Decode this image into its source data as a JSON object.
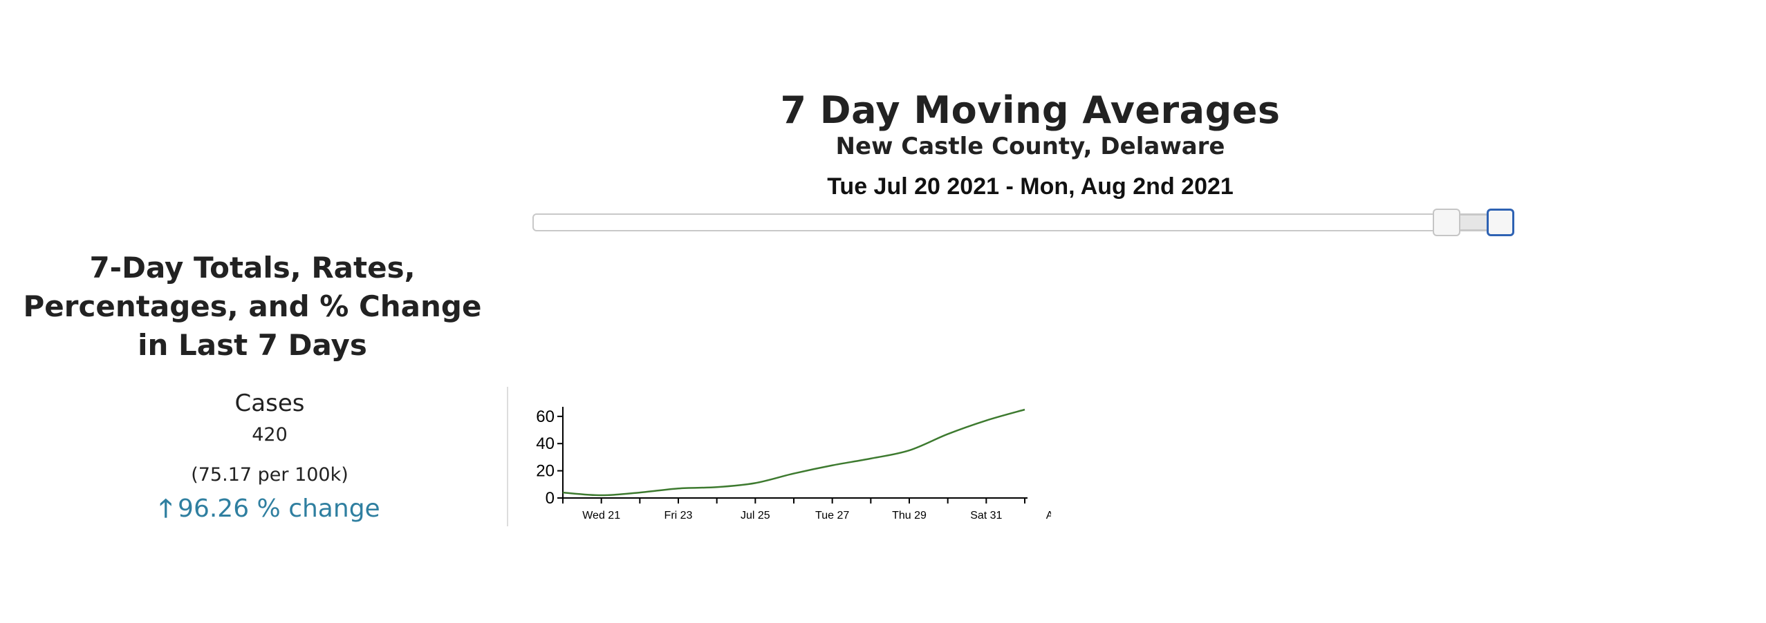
{
  "header": {
    "title": "7 Day Moving Averages",
    "subtitle": "New Castle County, Delaware",
    "date_range": "Tue Jul 20 2021 - Mon, Aug 2nd 2021"
  },
  "section": {
    "title": "7-Day Totals, Rates, Percentages, and % Change in Last 7 Days"
  },
  "stats": {
    "label": "Cases",
    "total": "420",
    "rate": "(75.17 per 100k)",
    "change": "96.26 % change",
    "change_direction_icon": "arrow-up-icon",
    "change_color": "#2f7fa0"
  },
  "colors": {
    "line": "#3d7a2f",
    "slider_active_border": "#2e62b3"
  },
  "chart_data": {
    "type": "line",
    "x": [
      "2021-07-20",
      "2021-07-21",
      "2021-07-22",
      "2021-07-23",
      "2021-07-24",
      "2021-07-25",
      "2021-07-26",
      "2021-07-27",
      "2021-07-28",
      "2021-07-29",
      "2021-07-30",
      "2021-07-31",
      "2021-08-01"
    ],
    "values": [
      4,
      2,
      4,
      7,
      8,
      11,
      18,
      24,
      29,
      35,
      47,
      57,
      65
    ],
    "x_tick_labels": [
      "Wed 21",
      "Fri 23",
      "Jul 25",
      "Tue 27",
      "Thu 29",
      "Sat 31",
      "August"
    ],
    "y_ticks": [
      0,
      20,
      40,
      60
    ],
    "ylim": [
      0,
      65
    ],
    "grid": false,
    "title": "",
    "xlabel": "",
    "ylabel": ""
  }
}
